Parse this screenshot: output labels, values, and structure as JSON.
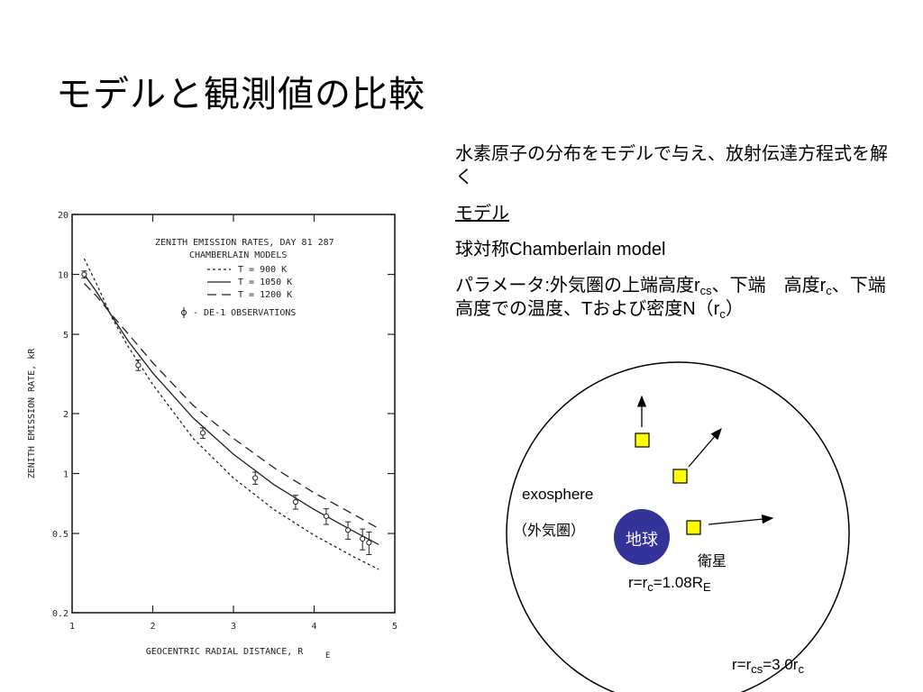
{
  "slide": {
    "title": "モデルと観測値の比較"
  },
  "text": {
    "line1": "水素原子の分布をモデルで与え、放射伝達方程式を解く",
    "model_heading": "モデル",
    "model_name": "球対称Chamberlain model",
    "params_a": "パラメータ:外気圏の上端高度r",
    "params_sub1": "cs",
    "params_b": "、下端　高度r",
    "params_sub2": "c",
    "params_c": "、下端高度での温度、Tおよび密度N（r",
    "params_sub3": "c",
    "params_d": "）"
  },
  "diagram": {
    "exosphere": "exosphere",
    "exosphere_jp": "（外気圏）",
    "earth": "地球",
    "satellite": "衛星",
    "rc_a": "r=r",
    "rc_sub": "c",
    "rc_b": "=1.08R",
    "rc_sub2": "E",
    "rcs_a": "r=r",
    "rcs_sub": "cs",
    "rcs_b": "=3.0r",
    "rcs_sub2": "c",
    "colors": {
      "earth": "#333399",
      "satellite": "#ffff00"
    }
  },
  "chart_data": {
    "type": "line",
    "title": "ZENITH EMISSION RATES, DAY 81 287",
    "subtitle": "CHAMBERLAIN MODELS",
    "xlabel": "GEOCENTRIC RADIAL DISTANCE, R",
    "xlabel_sub": "E",
    "ylabel": "ZENITH EMISSION RATE, kR",
    "xlim": [
      1,
      5
    ],
    "ylim": [
      0.2,
      20
    ],
    "yscale": "log",
    "x_ticks": [
      "1",
      "2",
      "3",
      "4",
      "5"
    ],
    "x_tick_values": [
      1,
      2,
      3,
      4,
      5
    ],
    "y_ticks": [
      "20",
      "10",
      "5",
      "2",
      "1",
      "0.5",
      "0.2"
    ],
    "y_tick_values": [
      20,
      10,
      5,
      2,
      1,
      0.5,
      0.2
    ],
    "series": [
      {
        "name": "T = 900 K",
        "style": "dotted",
        "x": [
          1.15,
          1.3,
          1.5,
          1.7,
          2.0,
          2.5,
          3.0,
          3.5,
          4.0,
          4.5,
          4.8
        ],
        "y": [
          12.0,
          9.0,
          6.0,
          4.3,
          2.8,
          1.5,
          0.95,
          0.66,
          0.49,
          0.38,
          0.33
        ]
      },
      {
        "name": "T = 1050 K",
        "style": "solid",
        "x": [
          1.15,
          1.3,
          1.5,
          1.7,
          2.0,
          2.5,
          3.0,
          3.5,
          4.0,
          4.5,
          4.8
        ],
        "y": [
          10.0,
          8.2,
          6.1,
          4.6,
          3.2,
          1.9,
          1.25,
          0.88,
          0.66,
          0.51,
          0.44
        ]
      },
      {
        "name": "T = 1200 K",
        "style": "dashed",
        "x": [
          1.15,
          1.3,
          1.5,
          1.7,
          2.0,
          2.5,
          3.0,
          3.5,
          4.0,
          4.5,
          4.8
        ],
        "y": [
          9.0,
          7.8,
          6.2,
          5.0,
          3.6,
          2.2,
          1.5,
          1.07,
          0.8,
          0.62,
          0.53
        ]
      }
    ],
    "observations": {
      "name": "DE-1 OBSERVATIONS",
      "x": [
        1.15,
        1.82,
        2.62,
        3.27,
        3.77,
        4.15,
        4.42,
        4.6,
        4.68
      ],
      "y": [
        10.0,
        3.5,
        1.6,
        0.95,
        0.72,
        0.61,
        0.52,
        0.47,
        0.45
      ],
      "err": [
        0.04,
        0.06,
        0.06,
        0.07,
        0.08,
        0.09,
        0.1,
        0.12,
        0.13
      ]
    },
    "legend_position": "top-right"
  }
}
